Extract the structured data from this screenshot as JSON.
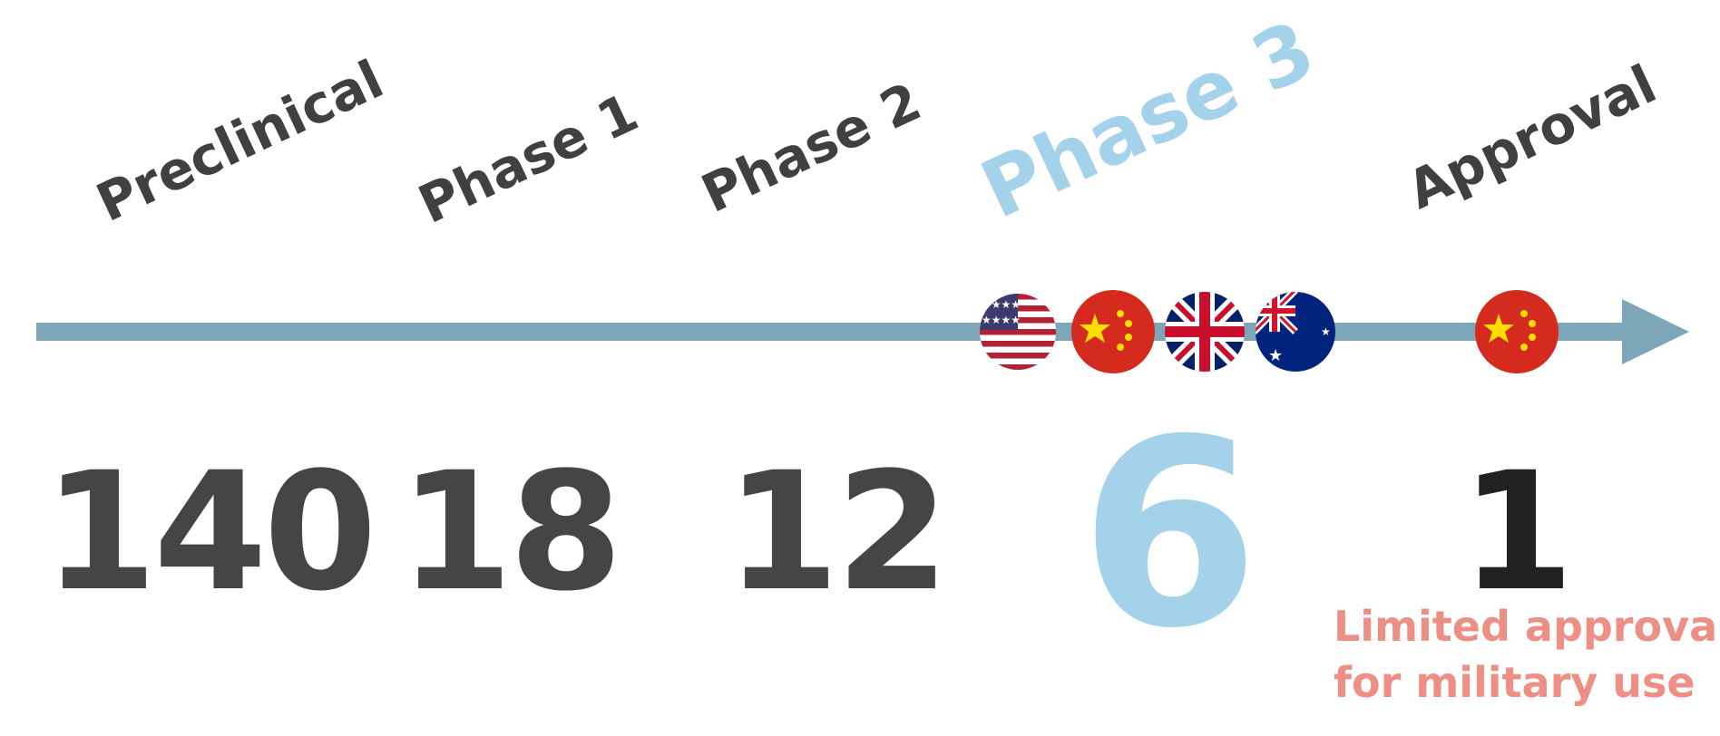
{
  "stages": [
    {
      "key": "preclinical",
      "label": "Preclinical",
      "count": "140"
    },
    {
      "key": "phase1",
      "label": "Phase 1",
      "count": "18"
    },
    {
      "key": "phase2",
      "label": "Phase 2",
      "count": "12"
    },
    {
      "key": "phase3",
      "label": "Phase 3",
      "count": "6"
    },
    {
      "key": "approval",
      "label": "Approval",
      "count": "1"
    }
  ],
  "flags": [
    {
      "country": "United States",
      "icon": "us-flag-icon"
    },
    {
      "country": "China",
      "icon": "china-flag-icon"
    },
    {
      "country": "United Kingdom",
      "icon": "uk-flag-icon"
    },
    {
      "country": "Australia",
      "icon": "australia-flag-icon"
    },
    {
      "country": "China",
      "icon": "china-flag-icon"
    }
  ],
  "approval_note": {
    "line1": "Limited approval",
    "line2": "for military use"
  },
  "colors": {
    "arrow": "#7ea6b9",
    "text": "#404040",
    "highlight": "#a3d2ea",
    "note": "#ee8f86"
  }
}
